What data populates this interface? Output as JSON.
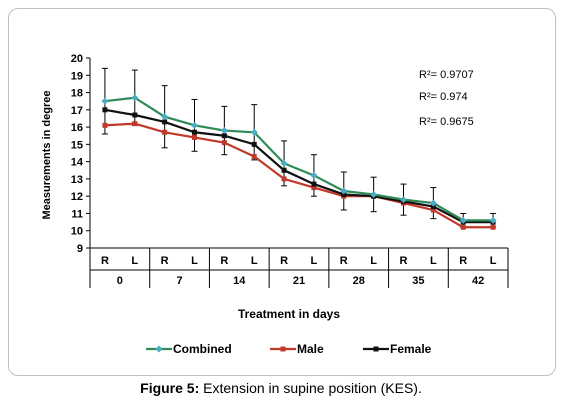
{
  "chart_data": {
    "type": "line",
    "ylabel": "Measurements in degree",
    "xlabel": "Treatment in days",
    "ylim": [
      9,
      20
    ],
    "yticks": [
      9,
      10,
      11,
      12,
      13,
      14,
      15,
      16,
      17,
      18,
      19,
      20
    ],
    "days": [
      "0",
      "7",
      "14",
      "21",
      "28",
      "35",
      "42"
    ],
    "sides": [
      "R",
      "L"
    ],
    "grid": false,
    "legend_position": "bottom",
    "series": [
      {
        "name": "Combined",
        "color": "#2e8b57",
        "marker_color": "#4bacc6",
        "values": [
          17.5,
          17.7,
          16.6,
          16.1,
          15.8,
          15.7,
          13.9,
          13.2,
          12.3,
          12.1,
          11.8,
          11.6,
          10.6,
          10.6
        ],
        "error": [
          1.9,
          1.6,
          1.8,
          1.5,
          1.4,
          1.6,
          1.3,
          1.2,
          1.1,
          1.0,
          0.9,
          0.9,
          0.4,
          0.4
        ]
      },
      {
        "name": "Male",
        "color": "#c0392b",
        "values": [
          16.1,
          16.2,
          15.7,
          15.4,
          15.1,
          14.3,
          13.0,
          12.5,
          12.0,
          12.0,
          11.6,
          11.2,
          10.2,
          10.2
        ],
        "error": [
          0,
          0,
          0,
          0,
          0,
          0,
          0,
          0,
          0,
          0,
          0,
          0,
          0,
          0
        ]
      },
      {
        "name": "Female",
        "color": "#111111",
        "values": [
          17.0,
          16.7,
          16.3,
          15.7,
          15.5,
          15.0,
          13.5,
          12.7,
          12.1,
          12.0,
          11.7,
          11.4,
          10.5,
          10.5
        ],
        "error": [
          0,
          0,
          0,
          0,
          0,
          0,
          0,
          0,
          0,
          0,
          0,
          0,
          0,
          0
        ]
      }
    ],
    "annotations": [
      "R²= 0.9707",
      "R²= 0.974",
      "R²= 0.9675"
    ]
  },
  "caption": {
    "label": "Figure 5:",
    "text": " Extension in supine position (KES)."
  }
}
